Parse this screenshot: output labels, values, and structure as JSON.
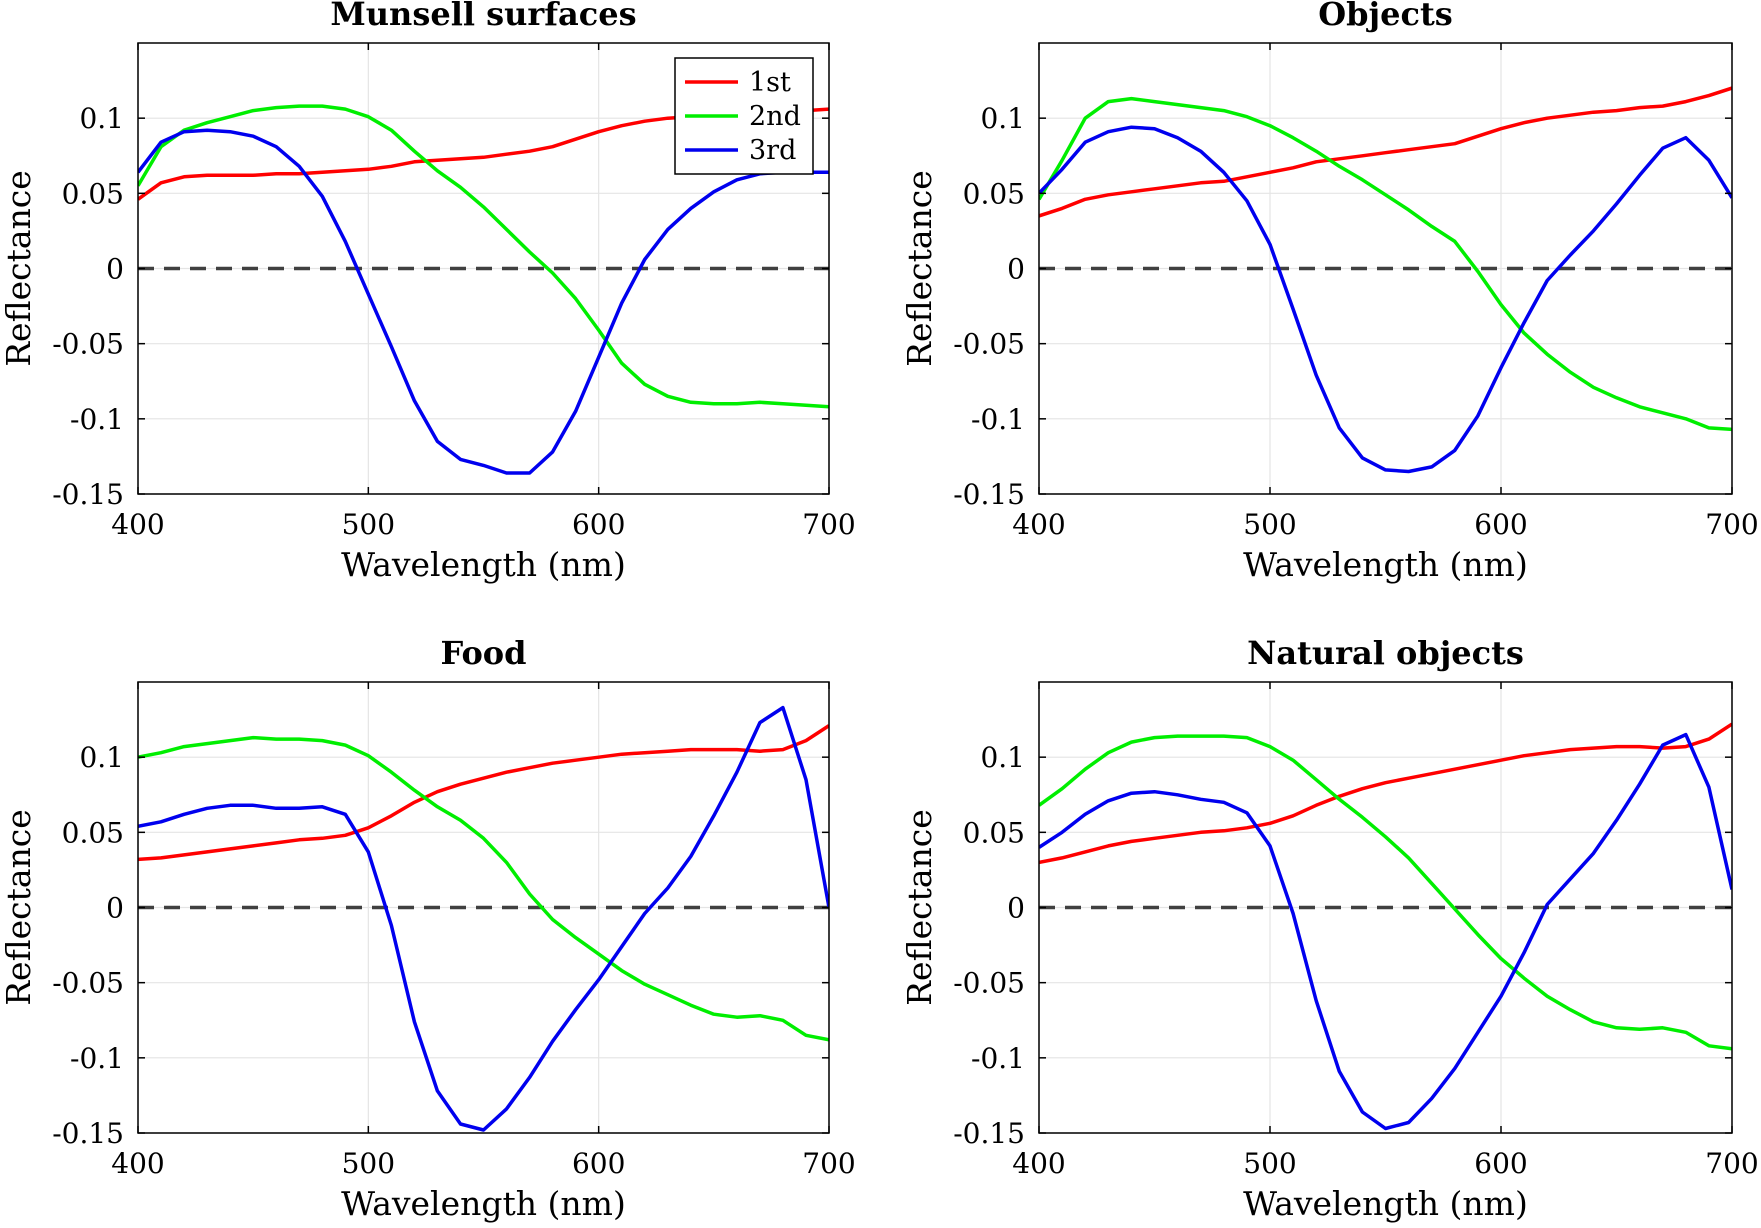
{
  "colors": {
    "first": "#ff0000",
    "second": "#00ee00",
    "third": "#0000ee",
    "zero_line": "#404040",
    "grid": "#e4e4e4",
    "axes": "#000000"
  },
  "legend": {
    "placement": "top-right (first panel only)",
    "entries": [
      "1st",
      "2nd",
      "3rd"
    ]
  },
  "chart_data": [
    {
      "type": "line",
      "title": "Munsell surfaces",
      "xlabel": "Wavelength (nm)",
      "ylabel": "Reflectance",
      "xlim": [
        400,
        700
      ],
      "ylim": [
        -0.15,
        0.15
      ],
      "xticks": [
        400,
        500,
        600,
        700
      ],
      "yticks": [
        "-0.15",
        "-0.1",
        "-0.05",
        "0",
        "0.05",
        "0.1"
      ],
      "grid": true,
      "show_legend": true,
      "x": [
        400,
        410,
        420,
        430,
        440,
        450,
        460,
        470,
        480,
        490,
        500,
        510,
        520,
        530,
        540,
        550,
        560,
        570,
        580,
        590,
        600,
        610,
        620,
        630,
        640,
        650,
        660,
        670,
        680,
        690,
        700
      ],
      "series": [
        {
          "name": "1st",
          "color": "#ff0000",
          "values": [
            0.046,
            0.057,
            0.061,
            0.062,
            0.062,
            0.062,
            0.063,
            0.063,
            0.064,
            0.065,
            0.066,
            0.068,
            0.071,
            0.072,
            0.073,
            0.074,
            0.076,
            0.078,
            0.081,
            0.086,
            0.091,
            0.095,
            0.098,
            0.1,
            0.101,
            0.102,
            0.103,
            0.104,
            0.104,
            0.105,
            0.106
          ]
        },
        {
          "name": "2nd",
          "color": "#00ee00",
          "values": [
            0.055,
            0.081,
            0.092,
            0.097,
            0.101,
            0.105,
            0.107,
            0.108,
            0.108,
            0.106,
            0.101,
            0.092,
            0.078,
            0.065,
            0.054,
            0.041,
            0.026,
            0.011,
            -0.003,
            -0.02,
            -0.041,
            -0.063,
            -0.077,
            -0.085,
            -0.089,
            -0.09,
            -0.09,
            -0.089,
            -0.09,
            -0.091,
            -0.092
          ]
        },
        {
          "name": "3rd",
          "color": "#0000ee",
          "values": [
            0.064,
            0.084,
            0.091,
            0.092,
            0.091,
            0.088,
            0.081,
            0.068,
            0.048,
            0.018,
            -0.017,
            -0.052,
            -0.088,
            -0.115,
            -0.127,
            -0.131,
            -0.136,
            -0.136,
            -0.122,
            -0.095,
            -0.059,
            -0.023,
            0.006,
            0.026,
            0.04,
            0.051,
            0.059,
            0.063,
            0.064,
            0.064,
            0.064
          ]
        }
      ]
    },
    {
      "type": "line",
      "title": "Objects",
      "xlabel": "Wavelength (nm)",
      "ylabel": "Reflectance",
      "xlim": [
        400,
        700
      ],
      "ylim": [
        -0.15,
        0.15
      ],
      "xticks": [
        400,
        500,
        600,
        700
      ],
      "yticks": [
        "-0.15",
        "-0.1",
        "-0.05",
        "0",
        "0.05",
        "0.1"
      ],
      "grid": true,
      "show_legend": false,
      "x": [
        400,
        410,
        420,
        430,
        440,
        450,
        460,
        470,
        480,
        490,
        500,
        510,
        520,
        530,
        540,
        550,
        560,
        570,
        580,
        590,
        600,
        610,
        620,
        630,
        640,
        650,
        660,
        670,
        680,
        690,
        700
      ],
      "series": [
        {
          "name": "1st",
          "color": "#ff0000",
          "values": [
            0.035,
            0.04,
            0.046,
            0.049,
            0.051,
            0.053,
            0.055,
            0.057,
            0.058,
            0.061,
            0.064,
            0.067,
            0.071,
            0.073,
            0.075,
            0.077,
            0.079,
            0.081,
            0.083,
            0.088,
            0.093,
            0.097,
            0.1,
            0.102,
            0.104,
            0.105,
            0.107,
            0.108,
            0.111,
            0.115,
            0.12
          ]
        },
        {
          "name": "2nd",
          "color": "#00ee00",
          "values": [
            0.046,
            0.072,
            0.1,
            0.111,
            0.113,
            0.111,
            0.109,
            0.107,
            0.105,
            0.101,
            0.095,
            0.087,
            0.078,
            0.068,
            0.059,
            0.049,
            0.039,
            0.028,
            0.018,
            -0.002,
            -0.024,
            -0.043,
            -0.057,
            -0.069,
            -0.079,
            -0.086,
            -0.092,
            -0.096,
            -0.1,
            -0.106,
            -0.107
          ]
        },
        {
          "name": "3rd",
          "color": "#0000ee",
          "values": [
            0.05,
            0.066,
            0.084,
            0.091,
            0.094,
            0.093,
            0.087,
            0.078,
            0.064,
            0.045,
            0.016,
            -0.027,
            -0.071,
            -0.106,
            -0.126,
            -0.134,
            -0.135,
            -0.132,
            -0.121,
            -0.098,
            -0.066,
            -0.036,
            -0.008,
            0.009,
            0.025,
            0.043,
            0.062,
            0.08,
            0.087,
            0.072,
            0.047
          ]
        }
      ]
    },
    {
      "type": "line",
      "title": "Food",
      "xlabel": "Wavelength (nm)",
      "ylabel": "Reflectance",
      "xlim": [
        400,
        700
      ],
      "ylim": [
        -0.15,
        0.15
      ],
      "xticks": [
        400,
        500,
        600,
        700
      ],
      "yticks": [
        "-0.15",
        "-0.1",
        "-0.05",
        "0",
        "0.05",
        "0.1"
      ],
      "grid": true,
      "show_legend": false,
      "x": [
        400,
        410,
        420,
        430,
        440,
        450,
        460,
        470,
        480,
        490,
        500,
        510,
        520,
        530,
        540,
        550,
        560,
        570,
        580,
        590,
        600,
        610,
        620,
        630,
        640,
        650,
        660,
        670,
        680,
        690,
        700
      ],
      "series": [
        {
          "name": "1st",
          "color": "#ff0000",
          "values": [
            0.032,
            0.033,
            0.035,
            0.037,
            0.039,
            0.041,
            0.043,
            0.045,
            0.046,
            0.048,
            0.053,
            0.061,
            0.07,
            0.077,
            0.082,
            0.086,
            0.09,
            0.093,
            0.096,
            0.098,
            0.1,
            0.102,
            0.103,
            0.104,
            0.105,
            0.105,
            0.105,
            0.104,
            0.105,
            0.111,
            0.121
          ]
        },
        {
          "name": "2nd",
          "color": "#00ee00",
          "values": [
            0.1,
            0.103,
            0.107,
            0.109,
            0.111,
            0.113,
            0.112,
            0.112,
            0.111,
            0.108,
            0.101,
            0.09,
            0.078,
            0.067,
            0.058,
            0.046,
            0.03,
            0.009,
            -0.008,
            -0.02,
            -0.031,
            -0.042,
            -0.051,
            -0.058,
            -0.065,
            -0.071,
            -0.073,
            -0.072,
            -0.075,
            -0.085,
            -0.088
          ]
        },
        {
          "name": "3rd",
          "color": "#0000ee",
          "values": [
            0.054,
            0.057,
            0.062,
            0.066,
            0.068,
            0.068,
            0.066,
            0.066,
            0.067,
            0.062,
            0.037,
            -0.012,
            -0.076,
            -0.122,
            -0.144,
            -0.148,
            -0.134,
            -0.113,
            -0.089,
            -0.068,
            -0.048,
            -0.026,
            -0.004,
            0.013,
            0.034,
            0.061,
            0.09,
            0.123,
            0.133,
            0.085,
            0.0
          ]
        }
      ]
    },
    {
      "type": "line",
      "title": "Natural objects",
      "xlabel": "Wavelength (nm)",
      "ylabel": "Reflectance",
      "xlim": [
        400,
        700
      ],
      "ylim": [
        -0.15,
        0.15
      ],
      "xticks": [
        400,
        500,
        600,
        700
      ],
      "yticks": [
        "-0.15",
        "-0.1",
        "-0.05",
        "0",
        "0.05",
        "0.1"
      ],
      "grid": true,
      "show_legend": false,
      "x": [
        400,
        410,
        420,
        430,
        440,
        450,
        460,
        470,
        480,
        490,
        500,
        510,
        520,
        530,
        540,
        550,
        560,
        570,
        580,
        590,
        600,
        610,
        620,
        630,
        640,
        650,
        660,
        670,
        680,
        690,
        700
      ],
      "series": [
        {
          "name": "1st",
          "color": "#ff0000",
          "values": [
            0.03,
            0.033,
            0.037,
            0.041,
            0.044,
            0.046,
            0.048,
            0.05,
            0.051,
            0.053,
            0.056,
            0.061,
            0.068,
            0.074,
            0.079,
            0.083,
            0.086,
            0.089,
            0.092,
            0.095,
            0.098,
            0.101,
            0.103,
            0.105,
            0.106,
            0.107,
            0.107,
            0.106,
            0.107,
            0.112,
            0.122
          ]
        },
        {
          "name": "2nd",
          "color": "#00ee00",
          "values": [
            0.068,
            0.079,
            0.092,
            0.103,
            0.11,
            0.113,
            0.114,
            0.114,
            0.114,
            0.113,
            0.107,
            0.098,
            0.085,
            0.072,
            0.06,
            0.047,
            0.033,
            0.016,
            -0.001,
            -0.018,
            -0.034,
            -0.047,
            -0.059,
            -0.068,
            -0.076,
            -0.08,
            -0.081,
            -0.08,
            -0.083,
            -0.092,
            -0.094
          ]
        },
        {
          "name": "3rd",
          "color": "#0000ee",
          "values": [
            0.04,
            0.05,
            0.062,
            0.071,
            0.076,
            0.077,
            0.075,
            0.072,
            0.07,
            0.063,
            0.041,
            -0.004,
            -0.062,
            -0.109,
            -0.136,
            -0.147,
            -0.143,
            -0.127,
            -0.107,
            -0.083,
            -0.059,
            -0.03,
            0.002,
            0.019,
            0.036,
            0.058,
            0.082,
            0.108,
            0.115,
            0.08,
            0.012
          ]
        }
      ]
    }
  ]
}
